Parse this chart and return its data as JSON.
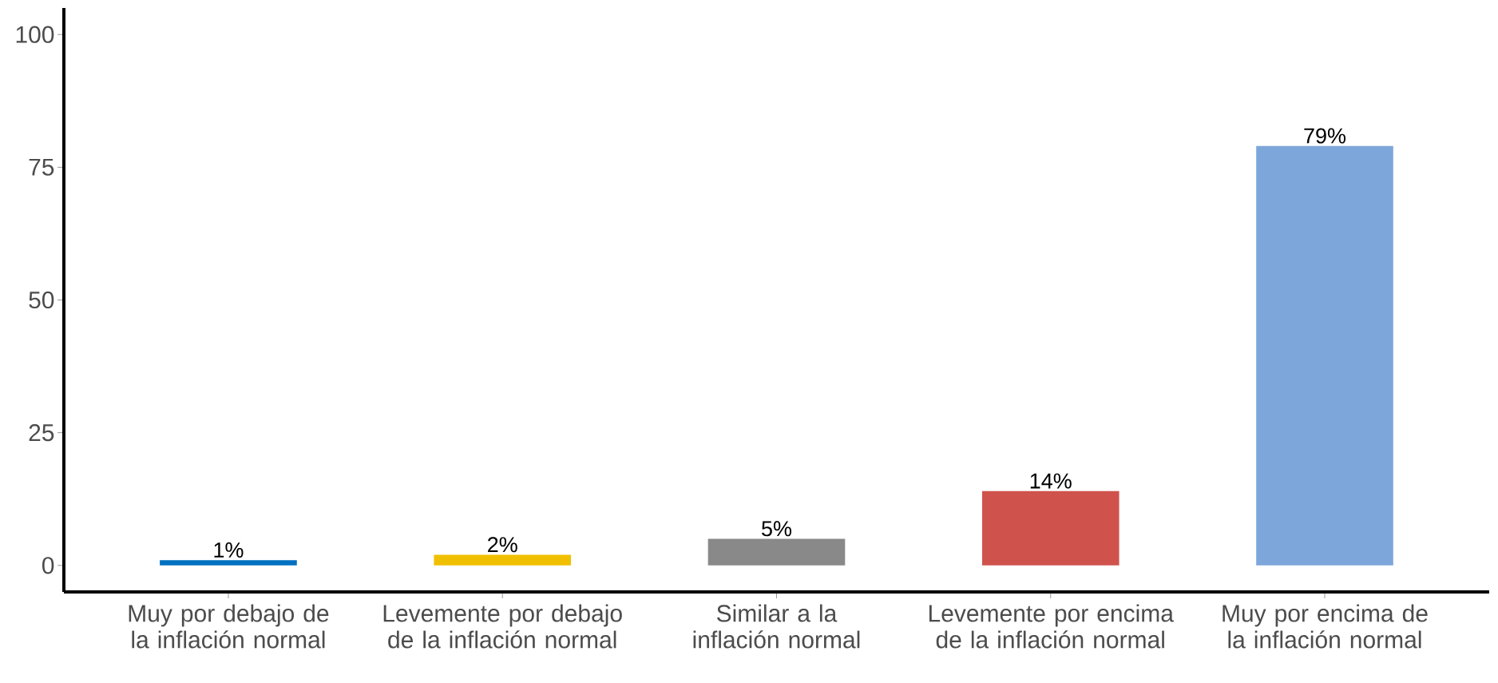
{
  "chart_data": {
    "type": "bar",
    "categories": [
      "Muy por debajo de la inflación normal",
      "Levemente por debajo de la inflación normal",
      "Similar a la inflación normal",
      "Levemente por encima de la inflación normal",
      "Muy por encima de la inflación normal"
    ],
    "values": [
      1,
      2,
      5,
      14,
      79
    ],
    "colors": [
      "#0070c0",
      "#f0c000",
      "#898989",
      "#cf534c",
      "#7da7db"
    ],
    "value_labels": [
      "1%",
      "2%",
      "5%",
      "14%",
      "79%"
    ],
    "ylim": [
      -5,
      105
    ],
    "yticks": [
      0,
      25,
      50,
      75,
      100
    ]
  }
}
